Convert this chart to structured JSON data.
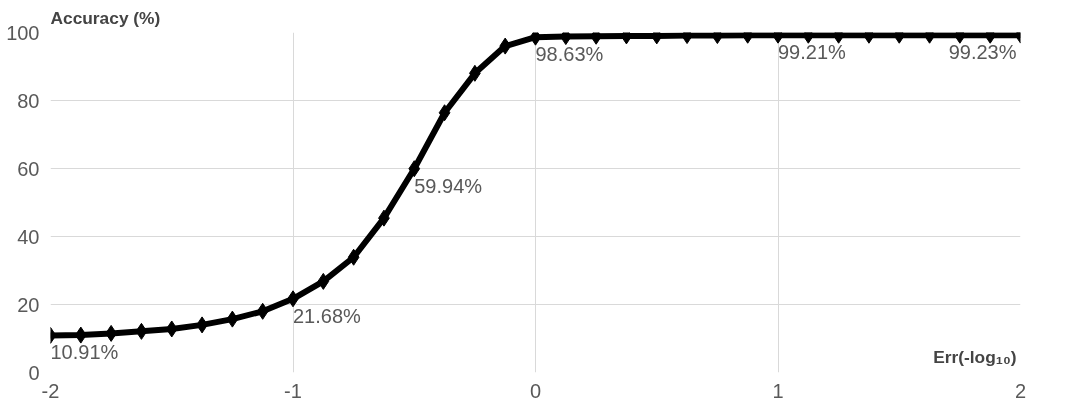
{
  "chart_data": {
    "type": "line",
    "ylabel": "Accuracy (%)",
    "xlabel": "Err(-log₁₀)",
    "x": [
      -2,
      -1.875,
      -1.75,
      -1.625,
      -1.5,
      -1.375,
      -1.25,
      -1.125,
      -1,
      -0.875,
      -0.75,
      -0.625,
      -0.5,
      -0.375,
      -0.25,
      -0.125,
      0,
      0.125,
      0.25,
      0.375,
      0.5,
      0.625,
      0.75,
      0.875,
      1,
      1.125,
      1.25,
      1.375,
      1.5,
      1.625,
      1.75,
      1.875,
      2
    ],
    "series": [
      {
        "color": "#000000",
        "values": [
          10.91,
          11,
          11.5,
          12.1,
          12.8,
          14,
          15.7,
          18,
          21.68,
          26.8,
          33.9,
          45.4,
          59.94,
          76.4,
          88,
          96,
          98.63,
          98.8,
          98.9,
          99,
          99,
          99.1,
          99.1,
          99.2,
          99.21,
          99.2,
          99.2,
          99.2,
          99.2,
          99.2,
          99.2,
          99.2,
          99.23
        ],
        "value_labels": [
          "10.91%",
          null,
          null,
          null,
          null,
          null,
          null,
          null,
          "21.68%",
          null,
          null,
          null,
          "59.94%",
          null,
          null,
          null,
          "98.63%",
          null,
          null,
          null,
          null,
          null,
          null,
          null,
          "99.21%",
          null,
          null,
          null,
          null,
          null,
          null,
          null,
          "99.23%"
        ]
      }
    ],
    "xlim": [
      -2,
      2
    ],
    "ylim": [
      0,
      100
    ],
    "xticks": [
      -2,
      -1,
      0,
      1,
      2
    ],
    "yticks": [
      0,
      20,
      40,
      60,
      80,
      100
    ],
    "grid": true,
    "marker": "diamond",
    "line_style": "solid"
  }
}
